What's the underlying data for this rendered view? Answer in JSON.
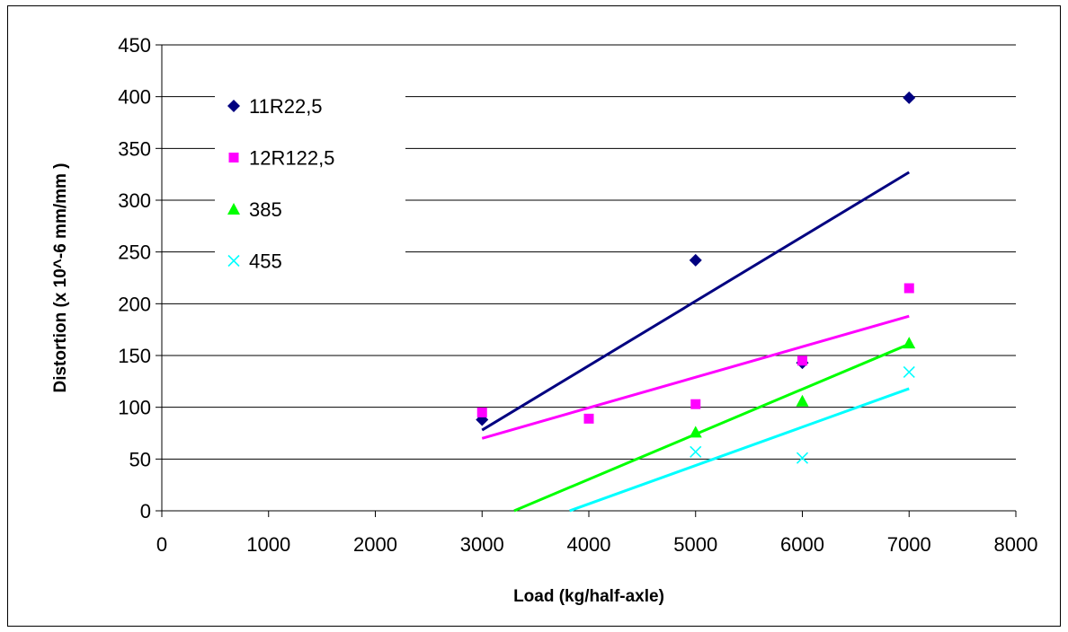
{
  "chart_data": {
    "type": "scatter",
    "xlabel": "Load (kg/half-axle)",
    "ylabel": "Distortion  (x 10^-6 mm/mm )",
    "xlim": [
      0,
      8000
    ],
    "ylim": [
      0,
      450
    ],
    "xticks": [
      0,
      1000,
      2000,
      3000,
      4000,
      5000,
      6000,
      7000,
      8000
    ],
    "yticks": [
      0,
      50,
      100,
      150,
      200,
      250,
      300,
      350,
      400,
      450
    ],
    "grid": "horizontal",
    "legend_position": "top-left",
    "series": [
      {
        "name": "11R22,5",
        "marker": "diamond",
        "color": "#000080",
        "points": [
          [
            3000,
            88
          ],
          [
            5000,
            242
          ],
          [
            6000,
            143
          ],
          [
            7000,
            399
          ]
        ],
        "trendline": [
          [
            3000,
            78
          ],
          [
            7000,
            327
          ]
        ]
      },
      {
        "name": "12R122,5",
        "marker": "square",
        "color": "#ff00ff",
        "points": [
          [
            3000,
            95
          ],
          [
            4000,
            89
          ],
          [
            5000,
            103
          ],
          [
            6000,
            145
          ],
          [
            7000,
            215
          ]
        ],
        "trendline": [
          [
            3000,
            70
          ],
          [
            7000,
            188
          ]
        ]
      },
      {
        "name": "385",
        "marker": "triangle",
        "color": "#00ff00",
        "points": [
          [
            5000,
            76
          ],
          [
            6000,
            106
          ],
          [
            7000,
            162
          ]
        ],
        "trendline": [
          [
            3300,
            0
          ],
          [
            7000,
            161
          ]
        ]
      },
      {
        "name": "455",
        "marker": "x",
        "color": "#00ffff",
        "points": [
          [
            5000,
            57
          ],
          [
            6000,
            51
          ],
          [
            7000,
            134
          ]
        ],
        "trendline": [
          [
            3820,
            0
          ],
          [
            7000,
            118
          ]
        ]
      }
    ]
  }
}
